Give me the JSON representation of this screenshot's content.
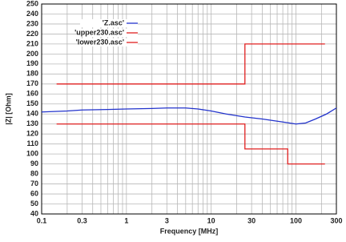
{
  "chart_data": {
    "type": "line",
    "x_label": "Frequency [MHz]",
    "y_label": "|Z| [Ohm]",
    "xscale": "log",
    "grid": true,
    "xlim": [
      0.1,
      300
    ],
    "ylim": [
      40,
      250
    ],
    "xticks": [
      0.1,
      0.3,
      1,
      3,
      10,
      30,
      100,
      300
    ],
    "xminorticks": [
      0.2,
      0.4,
      0.5,
      0.6,
      0.7,
      0.8,
      0.9,
      2,
      4,
      5,
      6,
      7,
      8,
      9,
      20,
      40,
      50,
      60,
      70,
      80,
      90,
      200
    ],
    "yticks": [
      40,
      50,
      60,
      70,
      80,
      90,
      100,
      110,
      120,
      130,
      140,
      150,
      160,
      170,
      180,
      190,
      200,
      210,
      220,
      230,
      240,
      250
    ],
    "series": [
      {
        "name": "'Z.asc'",
        "color": "#2233cc",
        "x": [
          0.1,
          0.2,
          0.3,
          0.6,
          1,
          2,
          3,
          5,
          7,
          10,
          15,
          25,
          40,
          70,
          100,
          130,
          170,
          230,
          300
        ],
        "values": [
          142,
          143,
          144,
          144.5,
          145,
          145.5,
          146,
          146,
          145,
          143,
          140,
          137,
          135,
          132,
          130,
          131,
          135,
          140,
          146
        ]
      },
      {
        "name": "'upper230.asc'",
        "color": "#e02020",
        "x": [
          0.15,
          25,
          25,
          220
        ],
        "values": [
          170,
          170,
          210,
          210
        ]
      },
      {
        "name": "'lower230.asc'",
        "color": "#e02020",
        "x": [
          0.15,
          25,
          25,
          80,
          80,
          220
        ],
        "values": [
          130,
          130,
          105,
          105,
          90,
          90
        ]
      }
    ]
  }
}
